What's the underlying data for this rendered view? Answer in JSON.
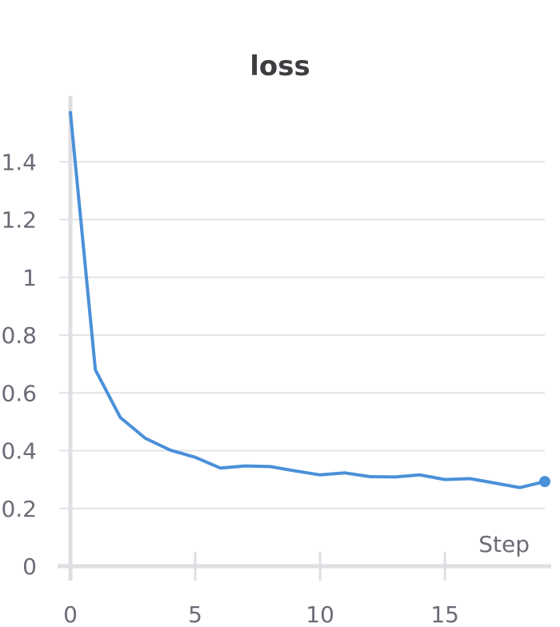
{
  "chart_data": {
    "type": "line",
    "title": "loss",
    "xlabel": "Step",
    "ylabel": "",
    "xlim": [
      0,
      19
    ],
    "ylim": [
      0,
      1.6
    ],
    "xticks": [
      0,
      5,
      10,
      15
    ],
    "yticks": [
      0,
      0.2,
      0.4,
      0.6,
      0.8,
      1,
      1.2,
      1.4
    ],
    "grid": true,
    "legend": "none",
    "color": "#4a90d9",
    "series": [
      {
        "x": [
          0,
          1,
          2,
          3,
          4,
          5,
          6,
          7,
          8,
          9,
          10,
          11,
          12,
          13,
          14,
          15,
          16,
          17,
          18,
          19
        ],
        "values": [
          1.57,
          0.68,
          0.515,
          0.443,
          0.402,
          0.377,
          0.34,
          0.347,
          0.345,
          0.33,
          0.316,
          0.323,
          0.31,
          0.309,
          0.316,
          0.3,
          0.303,
          0.288,
          0.272,
          0.293
        ]
      }
    ]
  }
}
